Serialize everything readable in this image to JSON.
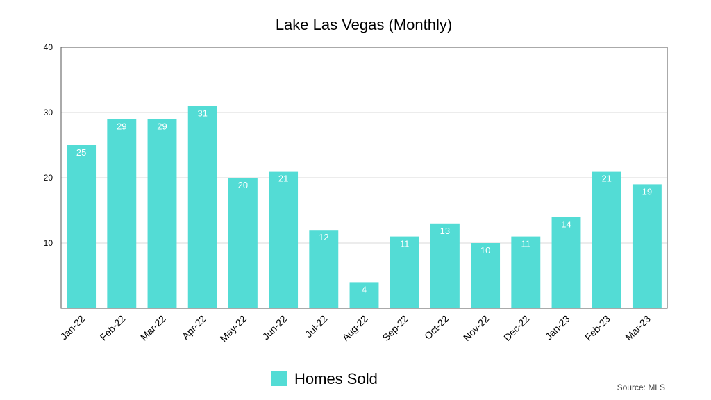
{
  "chart_data": {
    "type": "bar",
    "title": "Lake Las Vegas (Monthly)",
    "categories": [
      "Jan-22",
      "Feb-22",
      "Mar-22",
      "Apr-22",
      "May-22",
      "Jun-22",
      "Jul-22",
      "Aug-22",
      "Sep-22",
      "Oct-22",
      "Nov-22",
      "Dec-22",
      "Jan-23",
      "Feb-23",
      "Mar-23"
    ],
    "series": [
      {
        "name": "Homes Sold",
        "values": [
          25,
          29,
          29,
          31,
          20,
          21,
          12,
          4,
          11,
          13,
          10,
          11,
          14,
          21,
          19
        ]
      }
    ],
    "ylim": [
      0,
      40
    ],
    "yticks": [
      10,
      20,
      30,
      40
    ],
    "xlabel": "",
    "ylabel": "",
    "grid": true,
    "legend": "bottom-center",
    "data_labels": true,
    "bar_color": "#53dcd5",
    "source": "Source: MLS"
  }
}
